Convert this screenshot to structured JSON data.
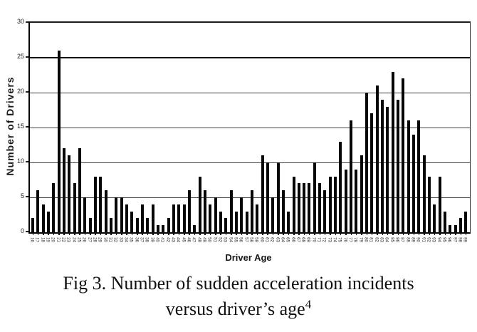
{
  "figure": {
    "caption_line1": "Fig 3.  Number of sudden acceleration incidents",
    "caption_line2": "versus driver’s age",
    "caption_superscript": "4"
  },
  "chart_data": {
    "type": "bar",
    "title": "",
    "xlabel": "Driver Age",
    "ylabel": "Number of Drivers",
    "ylim": [
      0,
      30
    ],
    "yticks": [
      0,
      5,
      10,
      15,
      20,
      25,
      30
    ],
    "grid": "horizontal",
    "legend": false,
    "bar_color": "#060606",
    "axis_color": "#000000",
    "gridline_color": "#3f3f3f",
    "categories": [
      "16",
      "17",
      "18",
      "19",
      "20",
      "21",
      "22",
      "23",
      "24",
      "25",
      "26",
      "27",
      "28",
      "29",
      "30",
      "31",
      "32",
      "33",
      "34",
      "35",
      "36",
      "37",
      "38",
      "39",
      "40",
      "41",
      "42",
      "43",
      "44",
      "45",
      "46",
      "47",
      "48",
      "49",
      "50",
      "51",
      "52",
      "53",
      "54",
      "55",
      "56",
      "57",
      "58",
      "59",
      "60",
      "61",
      "62",
      "63",
      "64",
      "65",
      "66",
      "67",
      "68",
      "69",
      "70",
      "71",
      "72",
      "73",
      "74",
      "75",
      "76",
      "77",
      "78",
      "79",
      "80",
      "81",
      "82",
      "83",
      "84",
      "85",
      "86",
      "87",
      "88",
      "89",
      "90",
      "91",
      "92",
      "93",
      "94",
      "95",
      "96",
      "97",
      "98",
      "99"
    ],
    "values": [
      2,
      6,
      4,
      3,
      7,
      26,
      12,
      11,
      7,
      12,
      5,
      2,
      8,
      8,
      6,
      2,
      5,
      5,
      4,
      3,
      2,
      4,
      2,
      4,
      1,
      1,
      2,
      4,
      4,
      4,
      6,
      1,
      8,
      6,
      4,
      5,
      3,
      2,
      6,
      3,
      5,
      3,
      6,
      4,
      11,
      10,
      5,
      10,
      6,
      3,
      8,
      7,
      7,
      7,
      10,
      7,
      6,
      8,
      8,
      13,
      9,
      16,
      9,
      11,
      20,
      17,
      21,
      19,
      18,
      23,
      19,
      22,
      16,
      14,
      16,
      11,
      8,
      4,
      8,
      3,
      1,
      1,
      2,
      3
    ]
  }
}
